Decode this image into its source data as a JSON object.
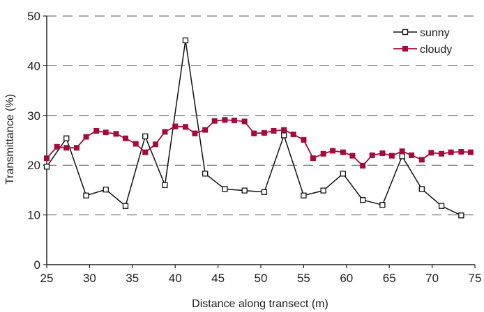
{
  "chart_data": {
    "type": "line",
    "xlabel": "Distance along transect (m)",
    "ylabel": "Transmittance (%)",
    "xlim": [
      25,
      75
    ],
    "ylim": [
      0,
      50
    ],
    "x_ticks": [
      "25",
      "30",
      "35",
      "40",
      "45",
      "50",
      "55",
      "60",
      "65",
      "70",
      "75"
    ],
    "y_ticks": [
      "0",
      "10",
      "20",
      "30",
      "40",
      "50"
    ],
    "grid": "horizontal dashed at 10, 20, 30, 40",
    "legend_position": "top-right",
    "series": [
      {
        "name": "sunny",
        "color": "#111111",
        "marker": "open-square",
        "x": [
          25.0,
          27.3,
          29.6,
          31.9,
          34.2,
          36.5,
          38.8,
          41.2,
          43.5,
          45.8,
          48.1,
          50.4,
          52.7,
          55.0,
          57.3,
          59.6,
          61.9,
          64.2,
          66.5,
          68.8,
          71.1,
          73.4
        ],
        "y": [
          19.7,
          25.4,
          13.9,
          15.1,
          11.8,
          25.8,
          16.0,
          45.1,
          18.3,
          15.2,
          14.9,
          14.6,
          26.0,
          13.9,
          14.9,
          18.3,
          13.0,
          12.0,
          21.8,
          15.2,
          11.8,
          9.9
        ]
      },
      {
        "name": "cloudy",
        "color": "#a6093d",
        "marker": "filled-square",
        "x": [
          25.0,
          26.2,
          27.3,
          28.5,
          29.6,
          30.8,
          31.9,
          33.1,
          34.2,
          35.4,
          36.5,
          37.7,
          38.8,
          40.0,
          41.2,
          42.3,
          43.5,
          44.6,
          45.8,
          46.9,
          48.1,
          49.2,
          50.4,
          51.5,
          52.7,
          53.8,
          55.0,
          56.1,
          57.3,
          58.4,
          59.6,
          60.7,
          61.9,
          63.0,
          64.2,
          65.3,
          66.5,
          67.6,
          68.8,
          69.9,
          71.1,
          72.2,
          73.4,
          74.5
        ],
        "y": [
          21.4,
          23.7,
          23.5,
          23.5,
          25.7,
          26.9,
          26.6,
          26.3,
          25.4,
          24.3,
          22.6,
          24.2,
          26.7,
          27.8,
          27.7,
          26.4,
          27.1,
          28.9,
          29.1,
          29.0,
          28.8,
          26.4,
          26.5,
          26.9,
          27.1,
          26.2,
          25.1,
          21.4,
          22.3,
          22.9,
          22.6,
          21.9,
          19.9,
          22.0,
          22.4,
          21.9,
          22.8,
          22.0,
          21.1,
          22.5,
          22.3,
          22.6,
          22.7,
          22.6
        ]
      }
    ]
  }
}
